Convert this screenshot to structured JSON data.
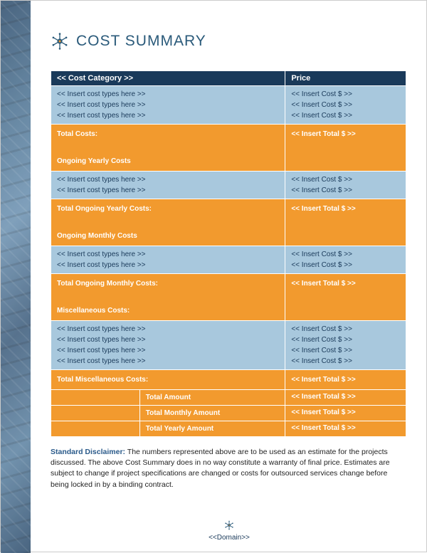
{
  "colors": {
    "header_bg": "#1a3a5a",
    "data_bg": "#a8c8dd",
    "accent_bg": "#f29a2e",
    "title_color": "#2a5a7a",
    "icon_primary": "#2a5a7a",
    "icon_accent": "#f29a2e"
  },
  "title": "COST SUMMARY",
  "table": {
    "header": {
      "category": "<< Cost Category >>",
      "price": "Price"
    },
    "sections": [
      {
        "rows": [
          {
            "type": "<< Insert cost types here >>",
            "cost": "<< Insert Cost $ >>"
          },
          {
            "type": "<< Insert cost types here >>",
            "cost": "<< Insert Cost $ >>"
          },
          {
            "type": "<< Insert cost types here >>",
            "cost": "<< Insert Cost $ >>"
          }
        ],
        "subtotal": {
          "label": "Total Costs:",
          "next_section": "Ongoing Yearly Costs",
          "value": "<< Insert Total $ >>"
        }
      },
      {
        "rows": [
          {
            "type": "<< Insert cost types here >>",
            "cost": "<< Insert Cost $ >>"
          },
          {
            "type": "<< Insert cost types here >>",
            "cost": "<< Insert Cost $ >>"
          }
        ],
        "subtotal": {
          "label": "Total Ongoing Yearly Costs:",
          "next_section": "Ongoing Monthly Costs",
          "value": "<< Insert Total $ >>"
        }
      },
      {
        "rows": [
          {
            "type": "<< Insert cost types here >>",
            "cost": "<< Insert Cost $ >>"
          },
          {
            "type": "<< Insert cost types here >>",
            "cost": "<< Insert Cost $ >>"
          }
        ],
        "subtotal": {
          "label": "Total Ongoing Monthly Costs:",
          "next_section": "Miscellaneous Costs:",
          "value": "<< Insert Total $ >>"
        }
      },
      {
        "rows": [
          {
            "type": "<< Insert cost types here >>",
            "cost": "<< Insert Cost $ >>"
          },
          {
            "type": "<< Insert cost types here >>",
            "cost": "<< Insert Cost $ >>"
          },
          {
            "type": "<< Insert cost types here >>",
            "cost": "<< Insert Cost $ >>"
          },
          {
            "type": "<< Insert cost types here >>",
            "cost": "<< Insert Cost $ >>"
          }
        ],
        "subtotal": {
          "label": "Total Miscellaneous Costs:",
          "next_section": "",
          "value": "<< Insert Total $ >>"
        }
      }
    ],
    "grand": [
      {
        "label": "Total Amount",
        "value": "<< Insert Total $ >>"
      },
      {
        "label": "Total Monthly Amount",
        "value": "<< Insert Total $ >>"
      },
      {
        "label": "Total Yearly Amount",
        "value": "<< Insert Total $ >>"
      }
    ]
  },
  "disclaimer": {
    "label": "Standard Disclaimer:",
    "text": "The numbers represented above are to be used as an estimate for the projects discussed. The above Cost Summary does in no way constitute a warranty of final price.  Estimates are subject to change if project specifications are changed or costs for outsourced services change before being locked in by a binding contract."
  },
  "footer": "<<Domain>>"
}
